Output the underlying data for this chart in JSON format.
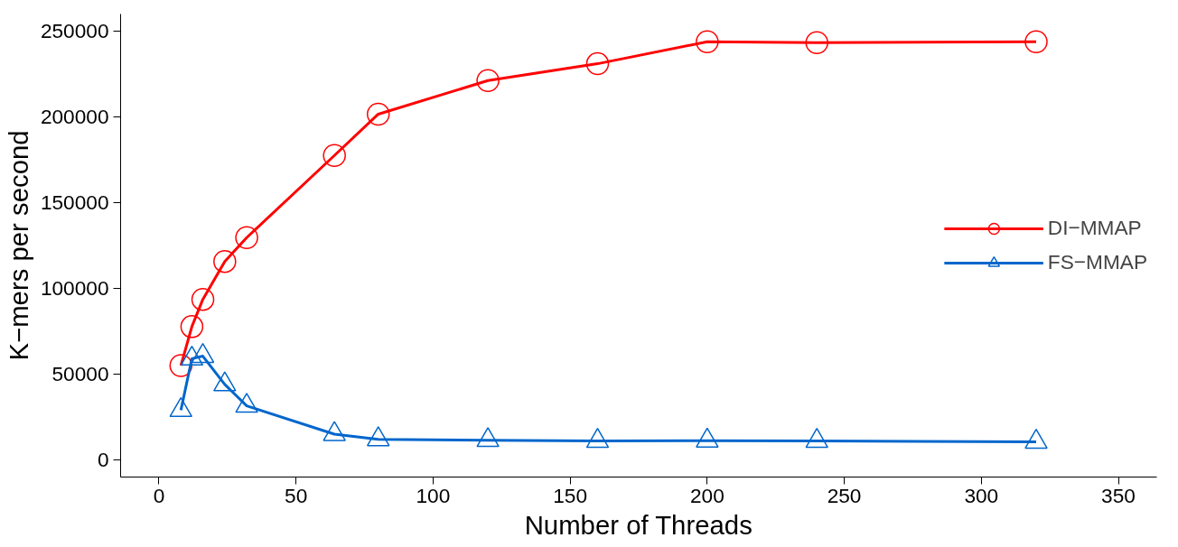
{
  "chart_data": {
    "type": "line",
    "xlabel": "Number of Threads",
    "ylabel": "K−mers per second",
    "x": [
      8,
      12,
      16,
      24,
      32,
      64,
      80,
      120,
      160,
      200,
      240,
      320
    ],
    "series": [
      {
        "name": "DI−MMAP",
        "color": "#ff0000",
        "marker": "circle",
        "values": [
          55000,
          77700,
          93600,
          115700,
          129600,
          177500,
          201600,
          221200,
          231000,
          243800,
          243300,
          243800
        ]
      },
      {
        "name": "FS−MMAP",
        "color": "#0066cc",
        "marker": "triangle",
        "values": [
          29000,
          59000,
          60500,
          44000,
          31500,
          15000,
          12000,
          11500,
          11000,
          11200,
          11000,
          10500
        ]
      }
    ],
    "xlim": [
      -14,
      364
    ],
    "xticks": [
      0,
      50,
      100,
      150,
      200,
      250,
      300,
      350
    ],
    "ylim": [
      -10000,
      260000
    ],
    "yticks": [
      0,
      50000,
      100000,
      150000,
      200000,
      250000
    ],
    "grid": false,
    "legend": "right",
    "line_style": "solid"
  }
}
